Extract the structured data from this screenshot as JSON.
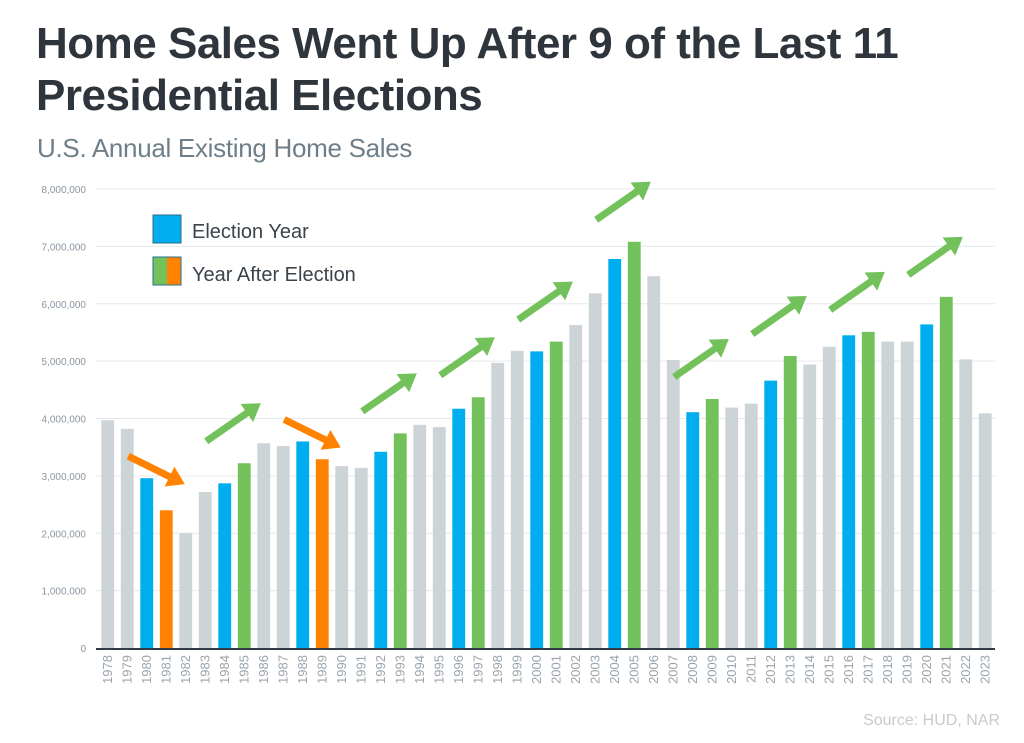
{
  "chart_data": {
    "type": "bar",
    "title": "Home Sales Went Up After 9 of the Last 11 Presidential Elections",
    "subtitle": "U.S. Annual Existing Home Sales",
    "source": "Source: HUD, NAR",
    "xlabel": "",
    "ylabel": "",
    "ylim": [
      0,
      8000000
    ],
    "yticks": [
      0,
      1000000,
      2000000,
      3000000,
      4000000,
      5000000,
      6000000,
      7000000,
      8000000
    ],
    "ytick_labels": [
      "0",
      "1,000,000",
      "2,000,000",
      "3,000,000",
      "4,000,000",
      "5,000,000",
      "6,000,000",
      "7,000,000",
      "8,000,000"
    ],
    "grid": true,
    "legend_position": "top-left",
    "legend": [
      {
        "label": "Election Year",
        "colors": [
          "#00aeef"
        ]
      },
      {
        "label": "Year After Election",
        "colors": [
          "#72c15a",
          "#ff8200"
        ]
      }
    ],
    "colors": {
      "other": "#ccd4d8",
      "election": "#00aeef",
      "after_up": "#72c15a",
      "after_down": "#ff8200",
      "grid": "#e6e9ec",
      "axis": "#333c44"
    },
    "categories": [
      "1978",
      "1979",
      "1980",
      "1981",
      "1982",
      "1983",
      "1984",
      "1985",
      "1986",
      "1987",
      "1988",
      "1989",
      "1990",
      "1991",
      "1992",
      "1993",
      "1994",
      "1995",
      "1996",
      "1997",
      "1998",
      "1999",
      "2000",
      "2001",
      "2002",
      "2003",
      "2004",
      "2005",
      "2006",
      "2007",
      "2008",
      "2009",
      "2010",
      "2011",
      "2012",
      "2013",
      "2014",
      "2015",
      "2016",
      "2017",
      "2018",
      "2019",
      "2020",
      "2021",
      "2022",
      "2023"
    ],
    "values": [
      3970000,
      3820000,
      2960000,
      2400000,
      2000000,
      2720000,
      2870000,
      3220000,
      3570000,
      3520000,
      3600000,
      3290000,
      3170000,
      3140000,
      3420000,
      3740000,
      3890000,
      3850000,
      4170000,
      4370000,
      4970000,
      5180000,
      5170000,
      5340000,
      5630000,
      6180000,
      6780000,
      7080000,
      6480000,
      5020000,
      4110000,
      4340000,
      4190000,
      4260000,
      4660000,
      5090000,
      4940000,
      5250000,
      5450000,
      5510000,
      5340000,
      5340000,
      5640000,
      6120000,
      5030000,
      4090000
    ],
    "kinds": [
      "other",
      "other",
      "election",
      "after_down",
      "other",
      "other",
      "election",
      "after_up",
      "other",
      "other",
      "election",
      "after_down",
      "other",
      "other",
      "election",
      "after_up",
      "other",
      "other",
      "election",
      "after_up",
      "other",
      "other",
      "election",
      "after_up",
      "other",
      "other",
      "election",
      "after_up",
      "other",
      "other",
      "election",
      "after_up",
      "other",
      "other",
      "election",
      "after_up",
      "other",
      "other",
      "election",
      "after_up",
      "other",
      "other",
      "election",
      "after_up",
      "other",
      "other"
    ],
    "annotations": [
      {
        "type": "arrow",
        "direction": "down",
        "color": "#ff8200",
        "from_year": "1980",
        "to_year": "1981"
      },
      {
        "type": "arrow",
        "direction": "up",
        "color": "#72c15a",
        "from_year": "1984",
        "to_year": "1985"
      },
      {
        "type": "arrow",
        "direction": "down",
        "color": "#ff8200",
        "from_year": "1988",
        "to_year": "1989"
      },
      {
        "type": "arrow",
        "direction": "up",
        "color": "#72c15a",
        "from_year": "1992",
        "to_year": "1993"
      },
      {
        "type": "arrow",
        "direction": "up",
        "color": "#72c15a",
        "from_year": "1996",
        "to_year": "1997"
      },
      {
        "type": "arrow",
        "direction": "up",
        "color": "#72c15a",
        "from_year": "2000",
        "to_year": "2001"
      },
      {
        "type": "arrow",
        "direction": "up",
        "color": "#72c15a",
        "from_year": "2004",
        "to_year": "2005"
      },
      {
        "type": "arrow",
        "direction": "up",
        "color": "#72c15a",
        "from_year": "2008",
        "to_year": "2009"
      },
      {
        "type": "arrow",
        "direction": "up",
        "color": "#72c15a",
        "from_year": "2012",
        "to_year": "2013"
      },
      {
        "type": "arrow",
        "direction": "up",
        "color": "#72c15a",
        "from_year": "2016",
        "to_year": "2017"
      },
      {
        "type": "arrow",
        "direction": "up",
        "color": "#72c15a",
        "from_year": "2020",
        "to_year": "2021"
      }
    ]
  }
}
